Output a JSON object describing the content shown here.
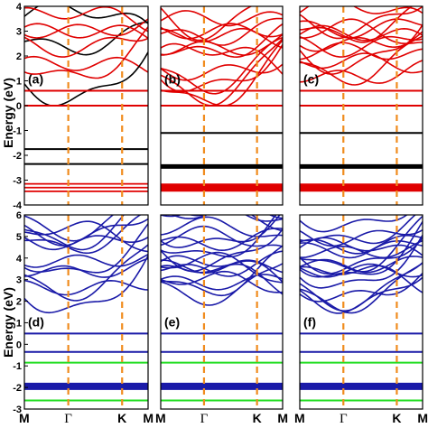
{
  "chart_data": {
    "type": "line",
    "ylabel": "Energy (eV)",
    "kpath": [
      "M",
      "Γ",
      "K",
      "M"
    ],
    "top_row": {
      "ylim": [
        -4,
        4
      ],
      "yticks": [
        "4",
        "3",
        "2",
        "1",
        "0",
        "-1",
        "-2",
        "-3",
        "-4"
      ],
      "panels": [
        {
          "tag": "(a)",
          "line_color": "#e00000",
          "flat_bands": [
            {
              "e": 0.6,
              "color": "#e00000",
              "weight": 2.0
            },
            {
              "e": 0.0,
              "color": "#e00000",
              "weight": 2.0
            },
            {
              "e": -1.75,
              "color": "#000000",
              "weight": 2.0
            },
            {
              "e": -2.35,
              "color": "#000000",
              "weight": 2.0
            },
            {
              "e": -3.15,
              "color": "#e00000",
              "weight": 1.8
            },
            {
              "e": -3.3,
              "color": "#e00000",
              "weight": 1.8
            },
            {
              "e": -3.45,
              "color": "#e00000",
              "weight": 1.8
            }
          ]
        },
        {
          "tag": "(b)",
          "line_color": "#e00000",
          "flat_bands": [
            {
              "e": 0.6,
              "color": "#e00000",
              "weight": 2.0
            },
            {
              "e": 0.0,
              "color": "#e00000",
              "weight": 2.0
            },
            {
              "e": -1.1,
              "color": "#000000",
              "weight": 2.0
            },
            {
              "e": -2.45,
              "color": "#000000",
              "weight": 5.0
            },
            {
              "e": -3.3,
              "color": "#e00000",
              "weight": 9.0
            }
          ]
        },
        {
          "tag": "(c)",
          "line_color": "#e00000",
          "flat_bands": [
            {
              "e": 0.6,
              "color": "#e00000",
              "weight": 2.0
            },
            {
              "e": 0.0,
              "color": "#e00000",
              "weight": 2.0
            },
            {
              "e": -1.1,
              "color": "#000000",
              "weight": 2.0
            },
            {
              "e": -2.45,
              "color": "#000000",
              "weight": 5.0
            },
            {
              "e": -3.3,
              "color": "#e00000",
              "weight": 9.0
            }
          ]
        }
      ]
    },
    "bottom_row": {
      "ylim": [
        -3,
        6
      ],
      "yticks": [
        "6",
        "5",
        "4",
        "3",
        "2",
        "1",
        "0",
        "-1",
        "-2",
        "-3"
      ],
      "panels": [
        {
          "tag": "(d)",
          "line_color": "#1a1aa8",
          "flat_bands": [
            {
              "e": 0.5,
              "color": "#1a1aa8",
              "weight": 2.0
            },
            {
              "e": -0.35,
              "color": "#1a1aa8",
              "weight": 2.0
            },
            {
              "e": -0.85,
              "color": "#22dd22",
              "weight": 2.0
            },
            {
              "e": -1.95,
              "color": "#1a1aa8",
              "weight": 8.0
            },
            {
              "e": -2.6,
              "color": "#22dd22",
              "weight": 2.0
            }
          ]
        },
        {
          "tag": "(e)",
          "line_color": "#1a1aa8",
          "flat_bands": [
            {
              "e": 0.5,
              "color": "#1a1aa8",
              "weight": 2.0
            },
            {
              "e": -0.35,
              "color": "#1a1aa8",
              "weight": 2.0
            },
            {
              "e": -0.85,
              "color": "#22dd22",
              "weight": 2.0
            },
            {
              "e": -1.95,
              "color": "#1a1aa8",
              "weight": 8.0
            },
            {
              "e": -2.6,
              "color": "#22dd22",
              "weight": 2.0
            }
          ]
        },
        {
          "tag": "(f)",
          "line_color": "#1a1aa8",
          "flat_bands": [
            {
              "e": 0.5,
              "color": "#1a1aa8",
              "weight": 2.0
            },
            {
              "e": -0.35,
              "color": "#1a1aa8",
              "weight": 2.0
            },
            {
              "e": -0.85,
              "color": "#22dd22",
              "weight": 2.0
            },
            {
              "e": -1.95,
              "color": "#1a1aa8",
              "weight": 8.0
            },
            {
              "e": -2.6,
              "color": "#22dd22",
              "weight": 2.0
            }
          ]
        }
      ]
    },
    "high_symmetry_line_color": "#f08c1e",
    "grid": false
  }
}
